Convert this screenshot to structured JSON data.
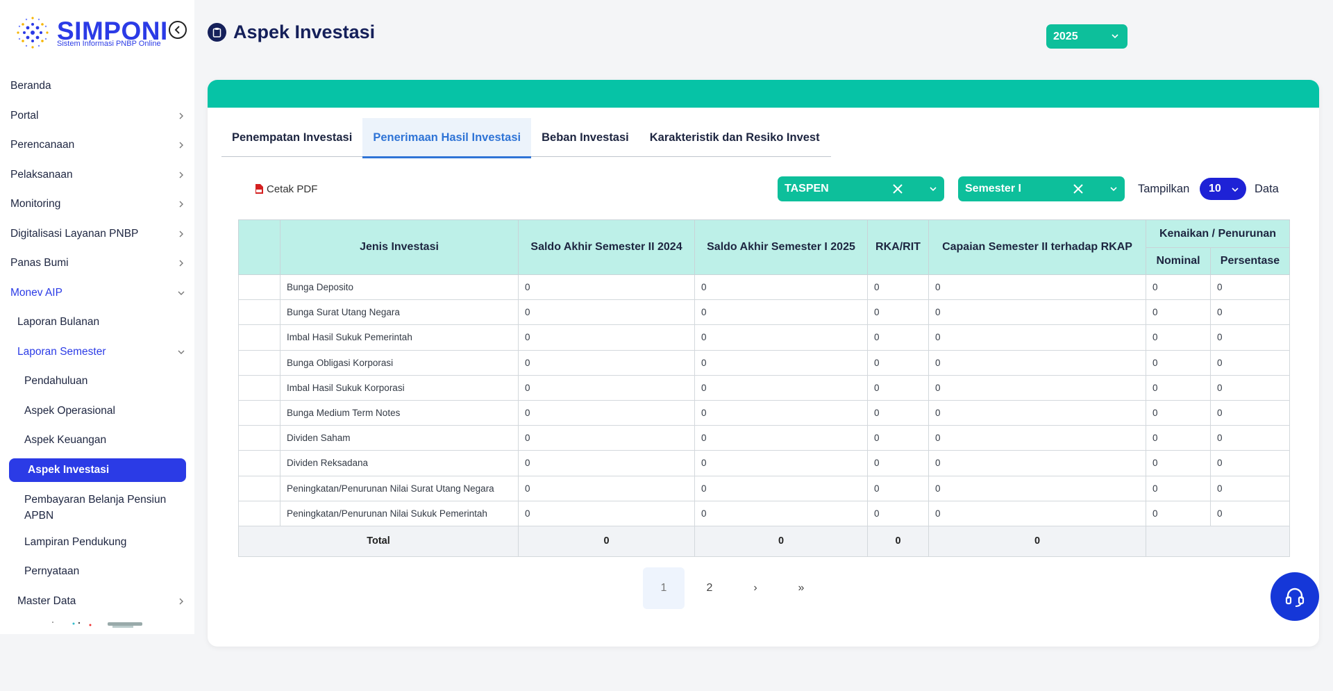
{
  "app": {
    "name": "SIMPONI",
    "subtitle": "Sistem Informasi PNBP Online"
  },
  "sidebar": {
    "items": [
      {
        "label": "Beranda"
      },
      {
        "label": "Portal"
      },
      {
        "label": "Perencanaan"
      },
      {
        "label": "Pelaksanaan"
      },
      {
        "label": "Monitoring"
      },
      {
        "label": "Digitalisasi Layanan PNBP"
      },
      {
        "label": "Panas Bumi"
      },
      {
        "label": "Monev AIP"
      },
      {
        "label": "Laporan Bulanan"
      },
      {
        "label": "Laporan Semester"
      },
      {
        "label": "Pendahuluan"
      },
      {
        "label": "Aspek Operasional"
      },
      {
        "label": "Aspek Keuangan"
      },
      {
        "label": "Aspek Investasi"
      },
      {
        "label": "Pembayaran Belanja Pensiun APBN"
      },
      {
        "label": "Lampiran Pendukung"
      },
      {
        "label": "Pernyataan"
      },
      {
        "label": "Master Data"
      }
    ]
  },
  "header": {
    "title": "Aspek Investasi",
    "year": "2025"
  },
  "tabs": [
    {
      "label": "Penempatan Investasi"
    },
    {
      "label": "Penerimaan Hasil Investasi"
    },
    {
      "label": "Beban Investasi"
    },
    {
      "label": "Karakteristik dan Resiko Invest"
    }
  ],
  "toolbar": {
    "pdf_label": "Cetak PDF",
    "entity": "TASPEN",
    "semester": "Semester I",
    "show_label": "Tampilkan",
    "page_size": "10",
    "data_label": "Data"
  },
  "table": {
    "headers": {
      "jenis": "Jenis Investasi",
      "saldo_prev": "Saldo Akhir Semester II 2024",
      "saldo_curr": "Saldo Akhir Semester I 2025",
      "rka": "RKA/RIT",
      "capaian": "Capaian Semester II terhadap RKAP",
      "kenaikan": "Kenaikan / Penurunan",
      "nominal": "Nominal",
      "persentase": "Persentase"
    },
    "rows": [
      [
        "Bunga Deposito",
        "0",
        "0",
        "0",
        "0",
        "0",
        "0"
      ],
      [
        "Bunga Surat Utang Negara",
        "0",
        "0",
        "0",
        "0",
        "0",
        "0"
      ],
      [
        "Imbal Hasil Sukuk Pemerintah",
        "0",
        "0",
        "0",
        "0",
        "0",
        "0"
      ],
      [
        "Bunga Obligasi Korporasi",
        "0",
        "0",
        "0",
        "0",
        "0",
        "0"
      ],
      [
        "Imbal Hasil Sukuk Korporasi",
        "0",
        "0",
        "0",
        "0",
        "0",
        "0"
      ],
      [
        "Bunga Medium Term Notes",
        "0",
        "0",
        "0",
        "0",
        "0",
        "0"
      ],
      [
        "Dividen Saham",
        "0",
        "0",
        "0",
        "0",
        "0",
        "0"
      ],
      [
        "Dividen Reksadana",
        "0",
        "0",
        "0",
        "0",
        "0",
        "0"
      ],
      [
        "Peningkatan/Penurunan Nilai Surat Utang Negara",
        "0",
        "0",
        "0",
        "0",
        "0",
        "0"
      ],
      [
        "Peningkatan/Penurunan Nilai Sukuk Pemerintah",
        "0",
        "0",
        "0",
        "0",
        "0",
        "0"
      ]
    ],
    "total": {
      "label": "Total",
      "saldo_prev": "0",
      "saldo_curr": "0",
      "rka": "0",
      "capaian": "0"
    }
  },
  "pagination": {
    "first": "«",
    "prev": "‹",
    "pages": [
      "1",
      "2"
    ],
    "next": "›",
    "last": "»"
  },
  "colors": {
    "brand": "#2b3be6",
    "accent": "#0dbf9b",
    "header_band": "#06c3a6",
    "table_header": "#bdf0e8"
  },
  "icons": {
    "collapse": "chevron-left-circle-icon",
    "title": "clipboard-icon",
    "pdf": "pdf-file-icon",
    "clear": "close-icon",
    "dropdown": "chevron-down-icon",
    "help": "headset-icon"
  }
}
